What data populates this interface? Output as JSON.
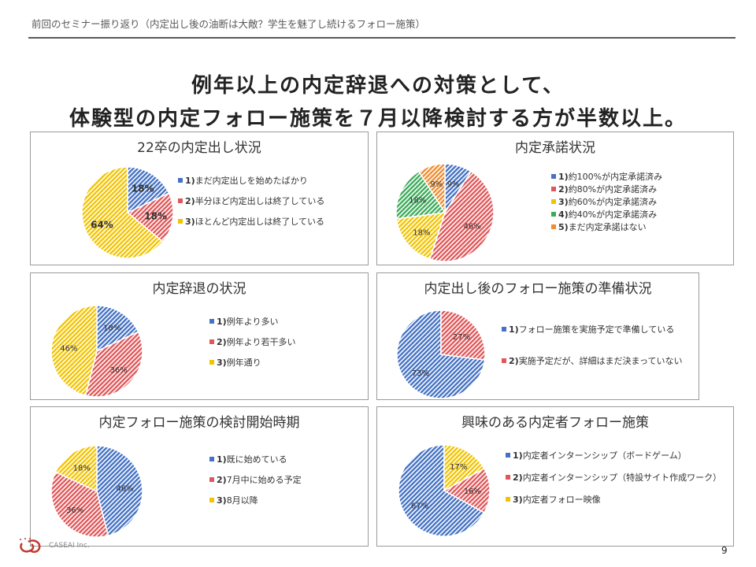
{
  "breadcrumb": "前回のセミナー振り返り（内定出し後の油断は大敵？学生を魅了し続けるフォロー施策）",
  "headline": {
    "line1": "例年以上の内定辞退への対策として、",
    "line2": "体験型の内定フォロー施策を７月以降検討する方が半数以上。"
  },
  "footer": {
    "page_number": "9",
    "company_text": "CASEAI Inc."
  },
  "colors": {
    "blue": "#4472C4",
    "red": "#E15759",
    "yellow": "#F2C400",
    "green": "#3CAB5A",
    "orange": "#F08C2E"
  },
  "chart_data": [
    {
      "type": "pie",
      "title": "22卒の内定出し状況",
      "categories": [
        {
          "num": "1)",
          "text": "まだ内定出しを始めたばかり"
        },
        {
          "num": "2)",
          "text": "半分ほど内定出しは終了している"
        },
        {
          "num": "3)",
          "text": "ほとんど内定出しは終了している"
        }
      ],
      "values": [
        18,
        18,
        64
      ],
      "labels": [
        "18%",
        "18%",
        "64%"
      ],
      "legend": "right"
    },
    {
      "type": "pie",
      "title": "内定承諾状況",
      "categories": [
        {
          "num": "1)",
          "text": "約100%が内定承諾済み"
        },
        {
          "num": "2)",
          "text": "約80%が内定承諾済み"
        },
        {
          "num": "3)",
          "text": "約60%が内定承諾済み"
        },
        {
          "num": "4)",
          "text": "約40%が内定承諾済み"
        },
        {
          "num": "5)",
          "text": "まだ内定承諾はない"
        }
      ],
      "values": [
        9,
        46,
        18,
        18,
        9
      ],
      "labels": [
        "9%",
        "46%",
        "18%",
        "18%",
        "9%"
      ],
      "legend": "right"
    },
    {
      "type": "pie",
      "title": "内定辞退の状況",
      "categories": [
        {
          "num": "1)",
          "text": "例年より多い"
        },
        {
          "num": "2)",
          "text": "例年より若干多い"
        },
        {
          "num": "3)",
          "text": "例年通り"
        }
      ],
      "values": [
        18,
        36,
        46
      ],
      "labels": [
        "18%",
        "36%",
        "46%"
      ],
      "legend": "right"
    },
    {
      "type": "pie",
      "title": "内定出し後のフォロー施策の準備状況",
      "categories": [
        {
          "num": "1)",
          "text": "フォロー施策を実施予定で準備している"
        },
        {
          "num": "2)",
          "text": "実施予定だが、詳細はまだ決まっていない"
        }
      ],
      "values": [
        73,
        27
      ],
      "labels": [
        "73%",
        "27%"
      ],
      "legend": "right"
    },
    {
      "type": "pie",
      "title": "内定フォロー施策の検討開始時期",
      "categories": [
        {
          "num": "1)",
          "text": "既に始めている"
        },
        {
          "num": "2)",
          "text": "7月中に始める予定"
        },
        {
          "num": "3)",
          "text": "8月以降"
        }
      ],
      "values": [
        46,
        36,
        18
      ],
      "labels": [
        "46%",
        "36%",
        "18%"
      ],
      "legend": "right"
    },
    {
      "type": "pie",
      "title": "興味のある内定者フォロー施策",
      "categories": [
        {
          "num": "1)",
          "text": "内定者インターンシップ（ボードゲーム）"
        },
        {
          "num": "2)",
          "text": "内定者インターンシップ（特設サイト作成ワーク）"
        },
        {
          "num": "3)",
          "text": "内定者フォロー映像"
        }
      ],
      "values": [
        67,
        16,
        17
      ],
      "labels": [
        "67%",
        "16%",
        "17%"
      ],
      "legend": "right"
    }
  ]
}
